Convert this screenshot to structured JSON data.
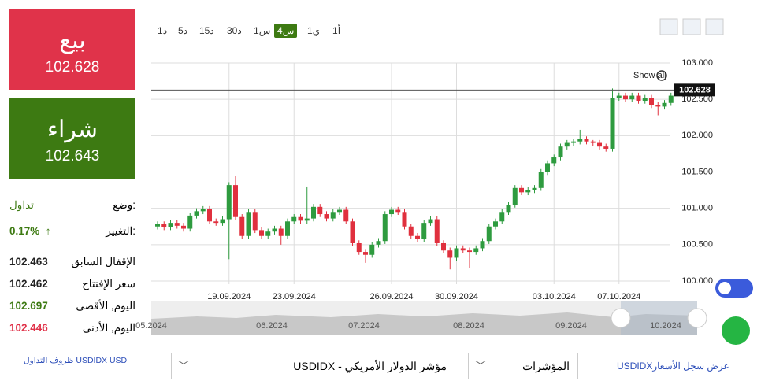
{
  "panel": {
    "sell": {
      "label": "بيع",
      "price": "102.628"
    },
    "buy": {
      "label": "شراء",
      "price": "102.643"
    },
    "status": {
      "label": "وضع:",
      "value": "تداول"
    },
    "change": {
      "label": "التغيير:",
      "value": "0.17%",
      "arrow": "↑"
    },
    "stats": [
      {
        "label": "الإقفال السابق",
        "value": "102.463"
      },
      {
        "label": "سعر الإفتتاح",
        "value": "102.462"
      },
      {
        "label": "اليوم, الأقصى",
        "value": "102.697"
      },
      {
        "label": "اليوم, الأدنى",
        "value": "102.446"
      }
    ],
    "link": "ظروف التداول USDIDX USD"
  },
  "toolbar": {
    "timeframes": [
      "1د",
      "5د",
      "15د",
      "30د",
      "1س",
      "س4",
      "1ي",
      "1أ"
    ]
  },
  "chart_data": {
    "type": "candlestick",
    "show_all": "Show all",
    "up_color": "#2e9b3f",
    "down_color": "#e0303e",
    "grid": true,
    "categories": [
      null,
      null,
      null,
      null,
      null,
      null,
      null,
      null,
      null,
      null,
      null,
      "19.09.2024",
      null,
      null,
      null,
      null,
      null,
      null,
      null,
      null,
      null,
      "23.09.2024",
      null,
      null,
      null,
      null,
      null,
      null,
      null,
      null,
      null,
      null,
      null,
      null,
      null,
      null,
      "26.09.2024",
      null,
      null,
      null,
      null,
      null,
      null,
      null,
      null,
      null,
      "30.09.2024",
      null,
      null,
      null,
      null,
      null,
      null,
      null,
      null,
      null,
      null,
      null,
      null,
      null,
      null,
      "03.10.2024",
      null,
      null,
      null,
      null,
      null,
      null,
      null,
      null,
      null,
      "07.10.2024",
      null,
      null,
      null,
      null,
      null,
      null,
      null,
      null
    ],
    "open": [
      100.75,
      100.78,
      100.74,
      100.8,
      100.76,
      100.72,
      100.9,
      100.96,
      100.99,
      100.82,
      100.8,
      100.85,
      101.32,
      100.88,
      100.62,
      100.95,
      100.7,
      100.62,
      100.68,
      100.72,
      100.62,
      100.82,
      100.88,
      100.83,
      100.86,
      101.02,
      100.92,
      100.86,
      100.95,
      100.98,
      100.82,
      100.52,
      100.4,
      100.36,
      100.5,
      100.55,
      100.92,
      100.98,
      100.95,
      100.75,
      100.62,
      100.58,
      100.8,
      100.85,
      100.52,
      100.42,
      100.32,
      100.45,
      100.42,
      100.4,
      100.45,
      100.55,
      100.75,
      100.82,
      100.95,
      101.05,
      101.28,
      101.22,
      101.25,
      101.28,
      101.5,
      101.62,
      101.7,
      101.85,
      101.9,
      101.92,
      101.95,
      101.92,
      101.9,
      101.85,
      101.82,
      102.52,
      102.55,
      102.5,
      102.55,
      102.48,
      102.52,
      102.42,
      102.4,
      102.45
    ],
    "high": [
      100.82,
      100.82,
      100.84,
      100.84,
      100.8,
      100.94,
      101.0,
      101.03,
      101.03,
      100.86,
      100.89,
      101.36,
      101.45,
      100.92,
      100.99,
      100.99,
      100.74,
      100.72,
      100.76,
      100.76,
      100.86,
      100.92,
      100.92,
      101.3,
      101.06,
      101.06,
      100.96,
      100.99,
      101.02,
      101.02,
      100.86,
      100.56,
      100.44,
      100.54,
      100.59,
      100.96,
      101.02,
      101.02,
      100.99,
      100.79,
      100.66,
      100.84,
      100.89,
      100.89,
      100.56,
      100.46,
      100.49,
      100.49,
      100.46,
      100.49,
      100.59,
      100.79,
      100.86,
      100.99,
      101.09,
      101.32,
      101.32,
      101.29,
      101.32,
      101.54,
      101.66,
      101.74,
      101.89,
      101.94,
      101.96,
      102.08,
      101.99,
      101.94,
      101.94,
      101.89,
      102.65,
      102.59,
      102.59,
      102.59,
      102.59,
      102.56,
      102.56,
      102.46,
      102.49,
      102.59
    ],
    "low": [
      100.71,
      100.7,
      100.7,
      100.72,
      100.68,
      100.68,
      100.86,
      100.92,
      100.78,
      100.76,
      100.76,
      100.3,
      100.84,
      100.58,
      100.58,
      100.66,
      100.58,
      100.58,
      100.64,
      100.5,
      100.58,
      100.78,
      100.79,
      100.79,
      100.82,
      100.88,
      100.82,
      100.82,
      100.91,
      100.78,
      100.48,
      100.36,
      100.25,
      100.32,
      100.46,
      100.51,
      100.88,
      100.91,
      100.71,
      100.58,
      100.54,
      100.54,
      100.76,
      100.48,
      100.38,
      100.16,
      100.28,
      100.38,
      100.18,
      100.36,
      100.41,
      100.51,
      100.71,
      100.78,
      100.91,
      101.01,
      101.18,
      101.18,
      101.21,
      101.24,
      101.46,
      101.58,
      101.66,
      101.81,
      101.86,
      101.88,
      101.88,
      101.86,
      101.81,
      101.78,
      101.78,
      102.48,
      102.46,
      102.46,
      102.44,
      102.44,
      102.38,
      102.28,
      102.36,
      102.41
    ],
    "close": [
      100.78,
      100.74,
      100.8,
      100.76,
      100.72,
      100.9,
      100.96,
      100.99,
      100.82,
      100.8,
      100.85,
      101.32,
      100.88,
      100.62,
      100.95,
      100.7,
      100.62,
      100.68,
      100.72,
      100.62,
      100.82,
      100.88,
      100.83,
      100.86,
      101.02,
      100.92,
      100.86,
      100.95,
      100.98,
      100.82,
      100.52,
      100.4,
      100.36,
      100.5,
      100.55,
      100.92,
      100.98,
      100.95,
      100.75,
      100.62,
      100.58,
      100.8,
      100.85,
      100.52,
      100.42,
      100.32,
      100.45,
      100.42,
      100.4,
      100.45,
      100.55,
      100.75,
      100.82,
      100.95,
      101.05,
      101.28,
      101.22,
      101.25,
      101.28,
      101.5,
      101.62,
      101.7,
      101.85,
      101.9,
      101.92,
      101.95,
      101.92,
      101.9,
      101.85,
      101.82,
      102.52,
      102.55,
      102.5,
      102.55,
      102.48,
      102.52,
      102.42,
      102.4,
      102.45,
      102.55
    ],
    "current_price": 102.628,
    "ylim": [
      100,
      103
    ],
    "yticks": [
      {
        "value": 100,
        "label": "100.000"
      },
      {
        "value": 100.5,
        "label": "100.500"
      },
      {
        "value": 101,
        "label": "101.000"
      },
      {
        "value": 101.5,
        "label": "101.500"
      },
      {
        "value": 102,
        "label": "102.000"
      },
      {
        "value": 102.5,
        "label": "102.500"
      },
      {
        "value": 103,
        "label": "103.000"
      }
    ]
  },
  "navigator": {
    "labels": [
      "05.2024",
      "06.2024",
      "07.2024",
      "08.2024",
      "09.2024",
      "10.2024"
    ]
  },
  "footer": {
    "instrument": "USDIDX - مؤشر الدولار الأمريكي",
    "category": "المؤشرات",
    "history_link": "USDIDXعرض سجل الأسعار"
  }
}
